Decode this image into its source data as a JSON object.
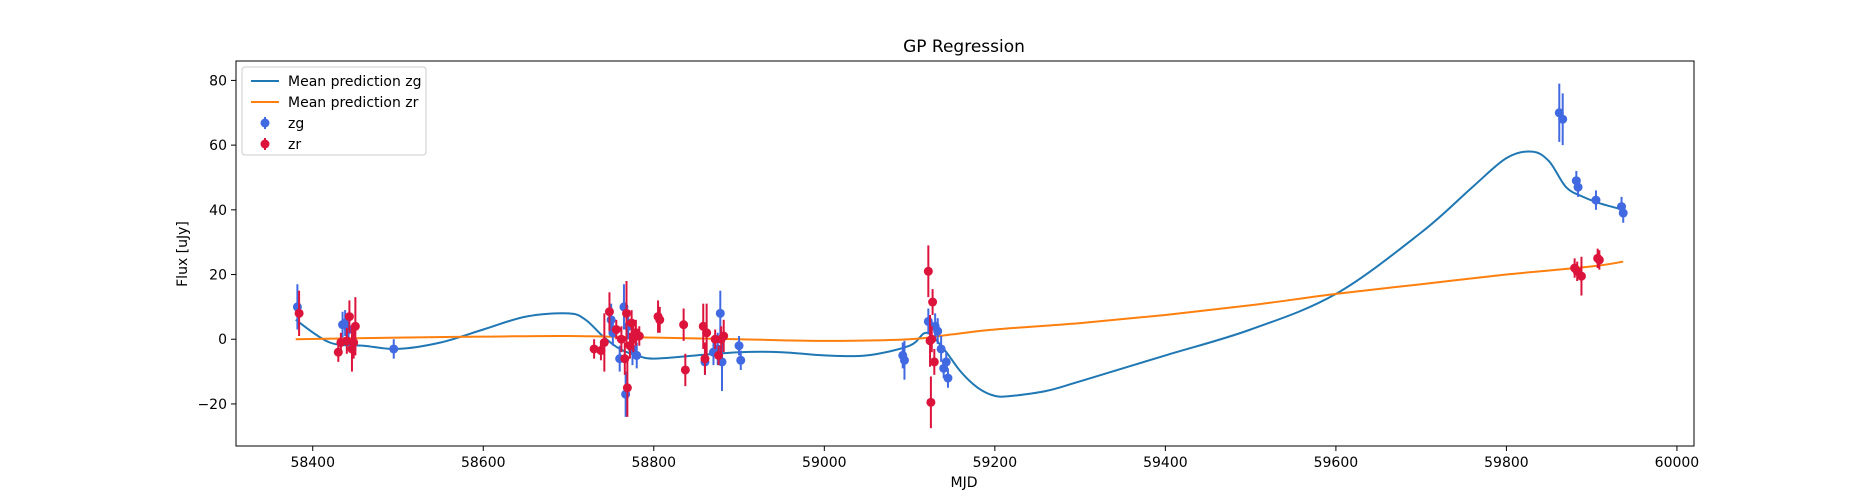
{
  "chart_data": {
    "type": "scatter",
    "title": "GP Regression",
    "xlabel": "MJD",
    "ylabel": "Flux [uJy]",
    "xlim": [
      58310,
      60020
    ],
    "ylim": [
      -33,
      86
    ],
    "x_ticks": [
      58400,
      58600,
      58800,
      59000,
      59200,
      59400,
      59600,
      59800,
      60000
    ],
    "y_ticks": [
      -20,
      0,
      20,
      40,
      60,
      80
    ],
    "grid": false,
    "legend_position": "upper-left",
    "series": [
      {
        "name": "Mean prediction zg",
        "kind": "line",
        "color": "#1f77b4",
        "x": [
          58380,
          58420,
          58460,
          58500,
          58550,
          58600,
          58650,
          58700,
          58720,
          58740,
          58760,
          58780,
          58800,
          58850,
          58900,
          58950,
          59000,
          59050,
          59100,
          59120,
          59140,
          59160,
          59180,
          59200,
          59220,
          59260,
          59300,
          59400,
          59500,
          59600,
          59700,
          59760,
          59800,
          59830,
          59850,
          59870,
          59890,
          59910,
          59937
        ],
        "y": [
          6,
          -1,
          -2,
          -3,
          -1,
          3,
          7,
          8,
          6,
          1,
          -3,
          -5,
          -6,
          -5,
          -4,
          -4,
          -5,
          -5,
          -2,
          2,
          -3,
          -10,
          -15,
          -17.5,
          -17.5,
          -16,
          -13,
          -5,
          3,
          14,
          33,
          47,
          56,
          58,
          55,
          47,
          44,
          42,
          40
        ]
      },
      {
        "name": "Mean prediction zr",
        "kind": "line",
        "color": "#ff7f0e",
        "x": [
          58380,
          58500,
          58600,
          58700,
          58800,
          58900,
          59000,
          59100,
          59150,
          59200,
          59300,
          59400,
          59500,
          59600,
          59700,
          59800,
          59900,
          59937
        ],
        "y": [
          0,
          0.5,
          0.8,
          1,
          0.5,
          0,
          -0.5,
          0,
          1.5,
          3,
          5,
          7.5,
          10.5,
          14,
          17,
          20,
          22.5,
          24
        ]
      },
      {
        "name": "zg",
        "kind": "errorbar",
        "color": "#4169e1",
        "points": [
          {
            "x": 58382,
            "y": 10,
            "err": 7
          },
          {
            "x": 58435,
            "y": 4.5,
            "err": 4
          },
          {
            "x": 58438,
            "y": 5,
            "err": 4
          },
          {
            "x": 58442,
            "y": 3,
            "err": 5
          },
          {
            "x": 58495,
            "y": -3,
            "err": 3
          },
          {
            "x": 58750,
            "y": 6,
            "err": 5
          },
          {
            "x": 58752,
            "y": 2,
            "err": 4
          },
          {
            "x": 58760,
            "y": -6,
            "err": 4
          },
          {
            "x": 58765,
            "y": 10,
            "err": 7
          },
          {
            "x": 58767,
            "y": -17,
            "err": 7
          },
          {
            "x": 58770,
            "y": 4,
            "err": 4
          },
          {
            "x": 58775,
            "y": -3,
            "err": 5
          },
          {
            "x": 58780,
            "y": -5,
            "err": 4
          },
          {
            "x": 58860,
            "y": -7,
            "err": 4
          },
          {
            "x": 58870,
            "y": -4,
            "err": 4
          },
          {
            "x": 58875,
            "y": -3,
            "err": 5
          },
          {
            "x": 58878,
            "y": 8,
            "err": 7
          },
          {
            "x": 58880,
            "y": -7,
            "err": 9
          },
          {
            "x": 58900,
            "y": -2,
            "err": 3
          },
          {
            "x": 58902,
            "y": -6.5,
            "err": 3
          },
          {
            "x": 59092,
            "y": -5,
            "err": 4
          },
          {
            "x": 59094,
            "y": -6.5,
            "err": 6
          },
          {
            "x": 59122,
            "y": 5.5,
            "err": 4
          },
          {
            "x": 59130,
            "y": 4,
            "err": 4
          },
          {
            "x": 59133,
            "y": 2.5,
            "err": 4
          },
          {
            "x": 59137,
            "y": -3,
            "err": 4
          },
          {
            "x": 59140,
            "y": -9,
            "err": 3
          },
          {
            "x": 59143,
            "y": -7,
            "err": 3
          },
          {
            "x": 59145,
            "y": -12,
            "err": 3
          },
          {
            "x": 59862,
            "y": 70,
            "err": 9
          },
          {
            "x": 59866,
            "y": 68,
            "err": 8
          },
          {
            "x": 59882,
            "y": 49,
            "err": 3
          },
          {
            "x": 59884,
            "y": 47,
            "err": 3
          },
          {
            "x": 59905,
            "y": 43,
            "err": 3
          },
          {
            "x": 59935,
            "y": 41,
            "err": 3
          },
          {
            "x": 59937,
            "y": 39,
            "err": 3
          }
        ]
      },
      {
        "name": "zr",
        "kind": "errorbar",
        "color": "#dc143c",
        "points": [
          {
            "x": 58384,
            "y": 8,
            "err": 7
          },
          {
            "x": 58430,
            "y": -4,
            "err": 3
          },
          {
            "x": 58433,
            "y": -1,
            "err": 3
          },
          {
            "x": 58440,
            "y": -0.5,
            "err": 4
          },
          {
            "x": 58443,
            "y": 7,
            "err": 5
          },
          {
            "x": 58446,
            "y": -3,
            "err": 7
          },
          {
            "x": 58448,
            "y": -1,
            "err": 5
          },
          {
            "x": 58450,
            "y": 4,
            "err": 9
          },
          {
            "x": 58730,
            "y": -3,
            "err": 3
          },
          {
            "x": 58738,
            "y": -3.5,
            "err": 3
          },
          {
            "x": 58742,
            "y": -1,
            "err": 9
          },
          {
            "x": 58748,
            "y": 8.5,
            "err": 6
          },
          {
            "x": 58756,
            "y": 3,
            "err": 3
          },
          {
            "x": 58762,
            "y": 0,
            "err": 4
          },
          {
            "x": 58766,
            "y": -6,
            "err": 5
          },
          {
            "x": 58768,
            "y": 8,
            "err": 10
          },
          {
            "x": 58769,
            "y": -15,
            "err": 9
          },
          {
            "x": 58772,
            "y": -2,
            "err": 4
          },
          {
            "x": 58774,
            "y": 5,
            "err": 4
          },
          {
            "x": 58776,
            "y": 0,
            "err": 4
          },
          {
            "x": 58779,
            "y": 2,
            "err": 4
          },
          {
            "x": 58783,
            "y": 1,
            "err": 3
          },
          {
            "x": 58805,
            "y": 7,
            "err": 5
          },
          {
            "x": 58807,
            "y": 6,
            "err": 4
          },
          {
            "x": 58835,
            "y": 4.5,
            "err": 5
          },
          {
            "x": 58837,
            "y": -9.5,
            "err": 5
          },
          {
            "x": 58858,
            "y": 4,
            "err": 7
          },
          {
            "x": 58860,
            "y": -6,
            "err": 5
          },
          {
            "x": 58862,
            "y": 2,
            "err": 9
          },
          {
            "x": 58872,
            "y": 0,
            "err": 3
          },
          {
            "x": 58876,
            "y": -5,
            "err": 3
          },
          {
            "x": 58879,
            "y": 0,
            "err": 4
          },
          {
            "x": 58882,
            "y": 1,
            "err": 5
          },
          {
            "x": 59122,
            "y": 21,
            "err": 8
          },
          {
            "x": 59124,
            "y": -0.5,
            "err": 8
          },
          {
            "x": 59125,
            "y": -19.5,
            "err": 8
          },
          {
            "x": 59126,
            "y": 0,
            "err": 4
          },
          {
            "x": 59127,
            "y": 11.5,
            "err": 4
          },
          {
            "x": 59129,
            "y": -7,
            "err": 4
          },
          {
            "x": 59880,
            "y": 22,
            "err": 3
          },
          {
            "x": 59883,
            "y": 21,
            "err": 3
          },
          {
            "x": 59888,
            "y": 19.5,
            "err": 6
          },
          {
            "x": 59907,
            "y": 25,
            "err": 3
          },
          {
            "x": 59909,
            "y": 24.5,
            "err": 3
          }
        ]
      }
    ]
  }
}
